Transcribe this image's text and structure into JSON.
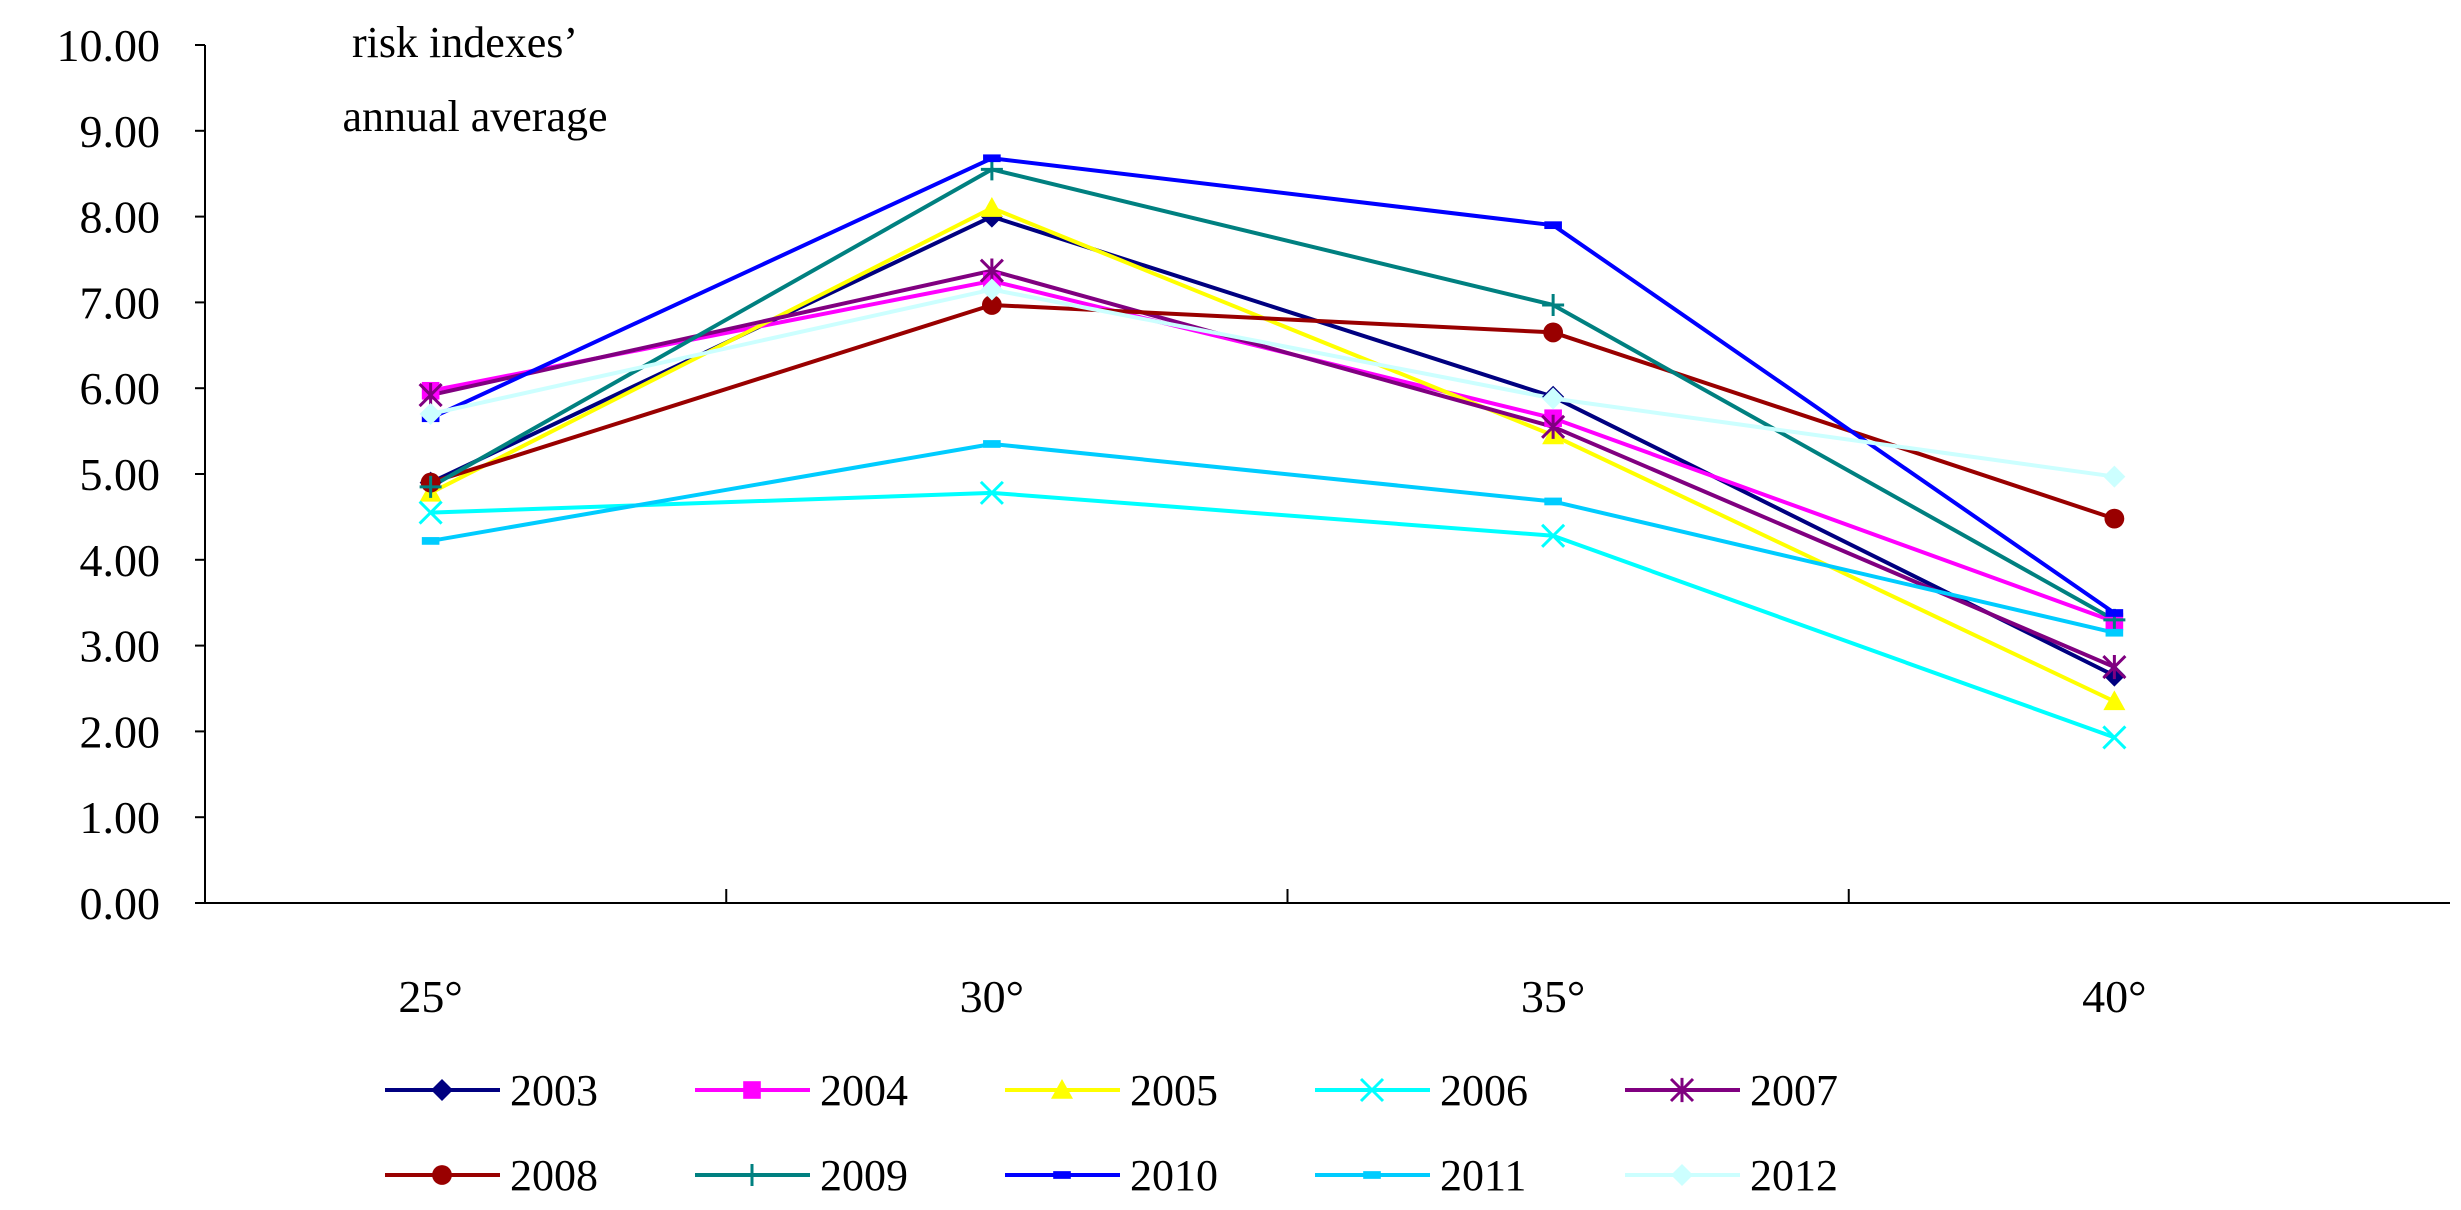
{
  "chart_data": {
    "type": "line",
    "title": "risk indexes’\nannual average",
    "title_lines": [
      "risk indexes’",
      "annual average"
    ],
    "xlabel": "",
    "ylabel": "",
    "categories": [
      "25°",
      "30°",
      "35°",
      "40°"
    ],
    "ylim": [
      0,
      10
    ],
    "y_ticks": [
      0,
      1,
      2,
      3,
      4,
      5,
      6,
      7,
      8,
      9,
      10
    ],
    "y_tick_labels": [
      "0.00",
      "1.00",
      "2.00",
      "3.00",
      "4.00",
      "5.00",
      "6.00",
      "7.00",
      "8.00",
      "9.00",
      "10.00"
    ],
    "grid": false,
    "legend_position": "bottom",
    "series": [
      {
        "name": "2003",
        "values": [
          4.9,
          8.0,
          5.9,
          2.65
        ],
        "color": "#000080",
        "marker": "diamond"
      },
      {
        "name": "2004",
        "values": [
          5.97,
          7.25,
          5.65,
          3.28
        ],
        "color": "#FF00FF",
        "marker": "square"
      },
      {
        "name": "2005",
        "values": [
          4.78,
          8.1,
          5.45,
          2.35
        ],
        "color": "#FFFF00",
        "marker": "triangle"
      },
      {
        "name": "2006",
        "values": [
          4.55,
          4.78,
          4.28,
          1.93
        ],
        "color": "#00FFFF",
        "marker": "x"
      },
      {
        "name": "2007",
        "values": [
          5.92,
          7.37,
          5.55,
          2.75
        ],
        "color": "#800080",
        "marker": "asterisk"
      },
      {
        "name": "2008",
        "values": [
          4.9,
          6.97,
          6.65,
          4.48
        ],
        "color": "#990000",
        "marker": "circle"
      },
      {
        "name": "2009",
        "values": [
          4.85,
          8.55,
          6.97,
          3.3
        ],
        "color": "#008080",
        "marker": "plus"
      },
      {
        "name": "2010",
        "values": [
          5.65,
          8.68,
          7.9,
          3.38
        ],
        "color": "#0000FF",
        "marker": "dash"
      },
      {
        "name": "2011",
        "values": [
          4.22,
          5.35,
          4.68,
          3.15
        ],
        "color": "#00CCFF",
        "marker": "dash"
      },
      {
        "name": "2012",
        "values": [
          5.7,
          7.15,
          5.88,
          4.97
        ],
        "color": "#CCFFFF",
        "marker": "diamond"
      }
    ]
  }
}
